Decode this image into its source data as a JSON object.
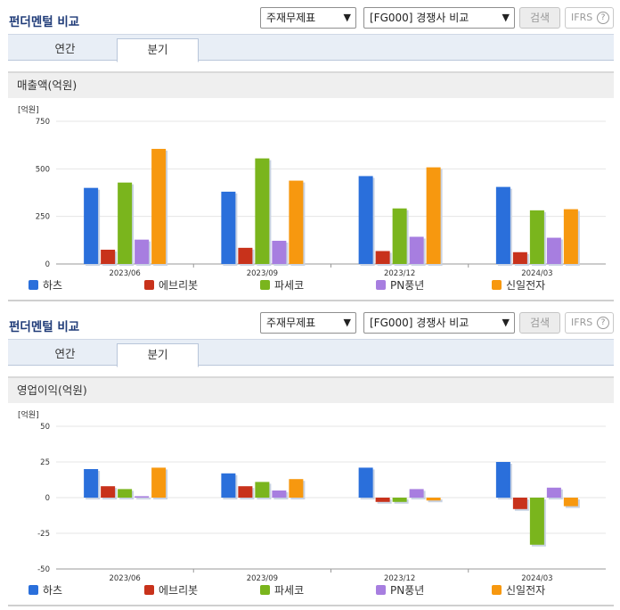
{
  "sections": [
    {
      "title": "펀더멘털 비교",
      "controls": {
        "type_select": "주재무제표",
        "compare_select": "[FG000] 경쟁사 비교",
        "search_label": "검색",
        "ifrs_label": "IFRS",
        "help_glyph": "?"
      },
      "tabs": [
        {
          "label": "연간"
        },
        {
          "label": "분기"
        }
      ],
      "active_tab": "분기",
      "metric_title": "매출액(억원)"
    },
    {
      "title": "펀더멘털 비교",
      "controls": {
        "type_select": "주재무제표",
        "compare_select": "[FG000] 경쟁사 비교",
        "search_label": "검색",
        "ifrs_label": "IFRS",
        "help_glyph": "?"
      },
      "tabs": [
        {
          "label": "연간"
        },
        {
          "label": "분기"
        }
      ],
      "active_tab": "분기",
      "metric_title": "영업이익(억원)"
    }
  ],
  "icons": {
    "dropdown": "chevron-down-icon",
    "help": "question-circle-icon"
  },
  "chart_data": [
    {
      "type": "bar",
      "title": "매출액(억원)",
      "unit": "[억원]",
      "categories": [
        "2023/06",
        "2023/09",
        "2023/12",
        "2024/03"
      ],
      "ylim": [
        0,
        750
      ],
      "yticks": [
        0,
        250,
        500,
        750
      ],
      "grid": true,
      "legend_position": "bottom",
      "series": [
        {
          "name": "하츠",
          "color": "#2a6fdb",
          "values": [
            400,
            380,
            462,
            405
          ]
        },
        {
          "name": "에브리봇",
          "color": "#c8321b",
          "values": [
            75,
            85,
            68,
            62
          ]
        },
        {
          "name": "파세코",
          "color": "#7ab51d",
          "values": [
            428,
            555,
            292,
            282
          ]
        },
        {
          "name": "PN풍년",
          "color": "#a77ee0",
          "values": [
            128,
            122,
            143,
            138
          ]
        },
        {
          "name": "신일전자",
          "color": "#f7980f",
          "values": [
            605,
            438,
            508,
            288
          ]
        }
      ]
    },
    {
      "type": "bar",
      "title": "영업이익(억원)",
      "unit": "[억원]",
      "categories": [
        "2023/06",
        "2023/09",
        "2023/12",
        "2024/03"
      ],
      "ylim": [
        -50,
        50
      ],
      "yticks": [
        -50,
        -25,
        0,
        25,
        50
      ],
      "grid": true,
      "legend_position": "bottom",
      "series": [
        {
          "name": "하츠",
          "color": "#2a6fdb",
          "values": [
            20,
            17,
            21,
            25
          ]
        },
        {
          "name": "에브리봇",
          "color": "#c8321b",
          "values": [
            8,
            8,
            -3,
            -8
          ]
        },
        {
          "name": "파세코",
          "color": "#7ab51d",
          "values": [
            6,
            11,
            -3,
            -33
          ]
        },
        {
          "name": "PN풍년",
          "color": "#a77ee0",
          "values": [
            1,
            5,
            6,
            7
          ]
        },
        {
          "name": "신일전자",
          "color": "#f7980f",
          "values": [
            21,
            13,
            -2,
            -6
          ]
        }
      ]
    }
  ]
}
